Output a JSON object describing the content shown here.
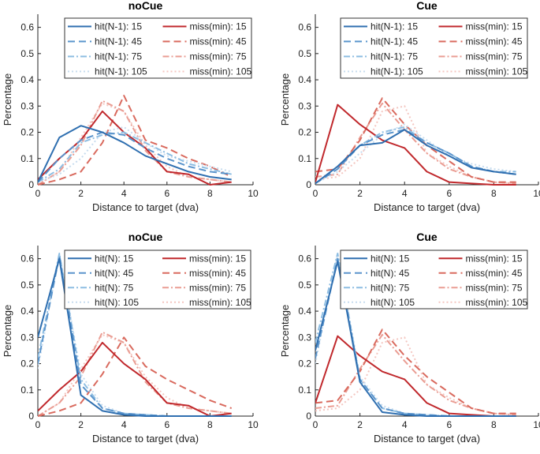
{
  "chart_data": [
    {
      "type": "line",
      "title": "noCue",
      "xlabel": "Distance to target (dva)",
      "ylabel": "Percentage",
      "xlim": [
        0,
        10
      ],
      "ylim": [
        0,
        0.65
      ],
      "xticks": [
        0,
        2,
        4,
        6,
        8,
        10
      ],
      "yticks": [
        0,
        0.1,
        0.2,
        0.3,
        0.4,
        0.5,
        0.6
      ],
      "grid": false,
      "legend_position": "top-right",
      "x": [
        0,
        1,
        2,
        3,
        4,
        5,
        6,
        7,
        8,
        9
      ],
      "series": [
        {
          "name": "hit(N-1): 15",
          "color": "#2f6fb0",
          "dash": "solid",
          "values": [
            0.01,
            0.18,
            0.225,
            0.2,
            0.16,
            0.11,
            0.08,
            0.05,
            0.03,
            0.02
          ]
        },
        {
          "name": "hit(N-1): 45",
          "color": "#5a94cc",
          "dash": "dashed",
          "values": [
            0.01,
            0.1,
            0.17,
            0.2,
            0.19,
            0.14,
            0.1,
            0.07,
            0.05,
            0.04
          ]
        },
        {
          "name": "hit(N-1): 75",
          "color": "#8dbde2",
          "dash": "dashdot",
          "values": [
            0.01,
            0.06,
            0.16,
            0.19,
            0.2,
            0.16,
            0.12,
            0.08,
            0.06,
            0.04
          ]
        },
        {
          "name": "hit(N-1): 105",
          "color": "#c7dcef",
          "dash": "dotted",
          "values": [
            0.01,
            0.04,
            0.1,
            0.2,
            0.22,
            0.16,
            0.11,
            0.09,
            0.07,
            0.05
          ]
        },
        {
          "name": "miss(min): 15",
          "color": "#c0282c",
          "dash": "solid",
          "values": [
            0.02,
            0.1,
            0.17,
            0.28,
            0.2,
            0.14,
            0.05,
            0.04,
            0.0,
            0.01
          ]
        },
        {
          "name": "miss(min): 45",
          "color": "#d96a5e",
          "dash": "dashed",
          "values": [
            0.0,
            0.02,
            0.05,
            0.16,
            0.34,
            0.17,
            0.14,
            0.1,
            0.07,
            0.03
          ]
        },
        {
          "name": "miss(min): 75",
          "color": "#ea9d93",
          "dash": "dashdot",
          "values": [
            0.0,
            0.05,
            0.15,
            0.32,
            0.28,
            0.13,
            0.05,
            0.03,
            0.02,
            0.01
          ]
        },
        {
          "name": "miss(min): 105",
          "color": "#f4c6c0",
          "dash": "dotted",
          "values": [
            0.0,
            0.05,
            0.18,
            0.31,
            0.28,
            0.15,
            0.07,
            0.03,
            0.02,
            0.01
          ]
        }
      ]
    },
    {
      "type": "line",
      "title": "Cue",
      "xlabel": "Distance to target (dva)",
      "ylabel": "Percentage",
      "xlim": [
        0,
        10
      ],
      "ylim": [
        0,
        0.65
      ],
      "xticks": [
        0,
        2,
        4,
        6,
        8,
        10
      ],
      "yticks": [
        0,
        0.1,
        0.2,
        0.3,
        0.4,
        0.5,
        0.6
      ],
      "grid": false,
      "legend_position": "top-right",
      "x": [
        0,
        1,
        2,
        3,
        4,
        5,
        6,
        7,
        8,
        9
      ],
      "series": [
        {
          "name": "hit(N-1): 15",
          "color": "#2f6fb0",
          "dash": "solid",
          "values": [
            0.005,
            0.07,
            0.15,
            0.16,
            0.21,
            0.15,
            0.11,
            0.065,
            0.05,
            0.04
          ]
        },
        {
          "name": "hit(N-1): 45",
          "color": "#5a94cc",
          "dash": "dashed",
          "values": [
            0.005,
            0.06,
            0.15,
            0.19,
            0.21,
            0.16,
            0.12,
            0.07,
            0.05,
            0.04
          ]
        },
        {
          "name": "hit(N-1): 75",
          "color": "#8dbde2",
          "dash": "dashdot",
          "values": [
            0.005,
            0.07,
            0.15,
            0.2,
            0.22,
            0.16,
            0.12,
            0.07,
            0.05,
            0.05
          ]
        },
        {
          "name": "hit(N-1): 105",
          "color": "#c7dcef",
          "dash": "dotted",
          "values": [
            0.005,
            0.05,
            0.12,
            0.19,
            0.23,
            0.17,
            0.11,
            0.08,
            0.06,
            0.05
          ]
        },
        {
          "name": "miss(min): 15",
          "color": "#c0282c",
          "dash": "solid",
          "values": [
            0.01,
            0.305,
            0.23,
            0.17,
            0.14,
            0.05,
            0.01,
            0.005,
            0.0,
            0.0
          ]
        },
        {
          "name": "miss(min): 45",
          "color": "#d96a5e",
          "dash": "dashed",
          "values": [
            0.05,
            0.06,
            0.17,
            0.33,
            0.23,
            0.15,
            0.09,
            0.03,
            0.01,
            0.01
          ]
        },
        {
          "name": "miss(min): 75",
          "color": "#ea9d93",
          "dash": "dashdot",
          "values": [
            0.03,
            0.04,
            0.18,
            0.31,
            0.21,
            0.12,
            0.06,
            0.03,
            0.01,
            0.005
          ]
        },
        {
          "name": "miss(min): 105",
          "color": "#f4c6c0",
          "dash": "dotted",
          "values": [
            0.02,
            0.03,
            0.1,
            0.28,
            0.3,
            0.12,
            0.07,
            0.03,
            0.01,
            0.005
          ]
        }
      ]
    },
    {
      "type": "line",
      "title": "noCue",
      "xlabel": "Distance to target (dva)",
      "ylabel": "Percentage",
      "xlim": [
        0,
        10
      ],
      "ylim": [
        0,
        0.65
      ],
      "xticks": [
        0,
        2,
        4,
        6,
        8,
        10
      ],
      "yticks": [
        0,
        0.1,
        0.2,
        0.3,
        0.4,
        0.5,
        0.6
      ],
      "grid": false,
      "legend_position": "top-right",
      "x": [
        0,
        1,
        2,
        3,
        4,
        5,
        6,
        7,
        8,
        9
      ],
      "series": [
        {
          "name": "hit(N): 15",
          "color": "#2f6fb0",
          "dash": "solid",
          "values": [
            0.3,
            0.6,
            0.08,
            0.02,
            0.005,
            0.0,
            0.0,
            0.0,
            0.0,
            0.0
          ]
        },
        {
          "name": "hit(N): 45",
          "color": "#5a94cc",
          "dash": "dashed",
          "values": [
            0.2,
            0.61,
            0.12,
            0.03,
            0.01,
            0.005,
            0.0,
            0.0,
            0.0,
            0.0
          ]
        },
        {
          "name": "hit(N): 75",
          "color": "#8dbde2",
          "dash": "dashdot",
          "values": [
            0.22,
            0.62,
            0.14,
            0.03,
            0.01,
            0.005,
            0.0,
            0.0,
            0.0,
            0.0
          ]
        },
        {
          "name": "hit(N): 105",
          "color": "#c7dcef",
          "dash": "dotted",
          "values": [
            0.18,
            0.62,
            0.16,
            0.04,
            0.01,
            0.005,
            0.0,
            0.0,
            0.0,
            0.0
          ]
        },
        {
          "name": "miss(min): 15",
          "color": "#c0282c",
          "dash": "solid",
          "values": [
            0.02,
            0.1,
            0.17,
            0.28,
            0.2,
            0.14,
            0.05,
            0.04,
            0.0,
            0.01
          ]
        },
        {
          "name": "miss(min): 45",
          "color": "#d96a5e",
          "dash": "dashed",
          "values": [
            0.0,
            0.02,
            0.05,
            0.16,
            0.3,
            0.19,
            0.14,
            0.1,
            0.06,
            0.03
          ]
        },
        {
          "name": "miss(min): 75",
          "color": "#ea9d93",
          "dash": "dashdot",
          "values": [
            0.0,
            0.05,
            0.15,
            0.32,
            0.28,
            0.13,
            0.05,
            0.03,
            0.02,
            0.01
          ]
        },
        {
          "name": "miss(min): 105",
          "color": "#f4c6c0",
          "dash": "dotted",
          "values": [
            0.0,
            0.05,
            0.18,
            0.31,
            0.28,
            0.15,
            0.07,
            0.03,
            0.02,
            0.01
          ]
        }
      ]
    },
    {
      "type": "line",
      "title": "Cue",
      "xlabel": "Distance to target (dva)",
      "ylabel": "Percentage",
      "xlim": [
        0,
        10
      ],
      "ylim": [
        0,
        0.65
      ],
      "xticks": [
        0,
        2,
        4,
        6,
        8,
        10
      ],
      "yticks": [
        0,
        0.1,
        0.2,
        0.3,
        0.4,
        0.5,
        0.6
      ],
      "grid": false,
      "legend_position": "top-right",
      "x": [
        0,
        1,
        2,
        3,
        4,
        5,
        6,
        7,
        8,
        9
      ],
      "series": [
        {
          "name": "hit(N): 15",
          "color": "#2f6fb0",
          "dash": "solid",
          "values": [
            0.25,
            0.59,
            0.13,
            0.015,
            0.005,
            0.0,
            0.0,
            0.0,
            0.0,
            0.0
          ]
        },
        {
          "name": "hit(N): 45",
          "color": "#5a94cc",
          "dash": "dashed",
          "values": [
            0.22,
            0.6,
            0.14,
            0.03,
            0.01,
            0.005,
            0.0,
            0.0,
            0.0,
            0.0
          ]
        },
        {
          "name": "hit(N): 75",
          "color": "#8dbde2",
          "dash": "dashdot",
          "values": [
            0.28,
            0.62,
            0.14,
            0.03,
            0.01,
            0.005,
            0.0,
            0.0,
            0.0,
            0.0
          ]
        },
        {
          "name": "hit(N): 105",
          "color": "#c7dcef",
          "dash": "dotted",
          "values": [
            0.2,
            0.62,
            0.15,
            0.04,
            0.01,
            0.005,
            0.0,
            0.0,
            0.0,
            0.0
          ]
        },
        {
          "name": "miss(min): 15",
          "color": "#c0282c",
          "dash": "solid",
          "values": [
            0.05,
            0.305,
            0.23,
            0.17,
            0.14,
            0.05,
            0.01,
            0.005,
            0.0,
            0.0
          ]
        },
        {
          "name": "miss(min): 45",
          "color": "#d96a5e",
          "dash": "dashed",
          "values": [
            0.05,
            0.06,
            0.17,
            0.33,
            0.23,
            0.15,
            0.09,
            0.03,
            0.01,
            0.01
          ]
        },
        {
          "name": "miss(min): 75",
          "color": "#ea9d93",
          "dash": "dashdot",
          "values": [
            0.03,
            0.04,
            0.18,
            0.31,
            0.21,
            0.12,
            0.06,
            0.03,
            0.01,
            0.005
          ]
        },
        {
          "name": "miss(min): 105",
          "color": "#f4c6c0",
          "dash": "dotted",
          "values": [
            0.02,
            0.03,
            0.1,
            0.28,
            0.3,
            0.12,
            0.07,
            0.03,
            0.01,
            0.005
          ]
        }
      ]
    }
  ]
}
